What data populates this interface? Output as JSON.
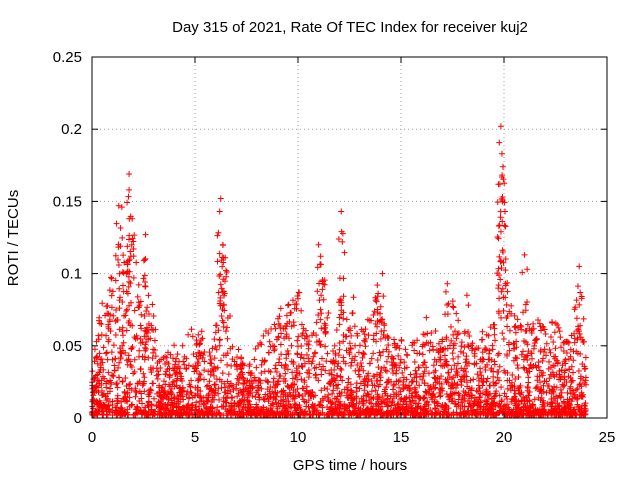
{
  "chart_data": {
    "type": "scatter",
    "title": "Day 315 of 2021, Rate Of TEC Index for receiver kuj2",
    "xlabel": "GPS time / hours",
    "ylabel": "ROTI / TECUs",
    "xlim": [
      0,
      25
    ],
    "ylim": [
      0,
      0.25
    ],
    "x_ticks": [
      0,
      5,
      10,
      15,
      20,
      25
    ],
    "x_tick_labels": [
      "0",
      "5",
      "10",
      "15",
      "20",
      "25"
    ],
    "y_ticks": [
      0,
      0.05,
      0.1,
      0.15,
      0.2,
      0.25
    ],
    "y_tick_labels": [
      "0",
      "0.05",
      "0.1",
      "0.15",
      "0.2",
      "0.25"
    ],
    "grid": true,
    "marker": "+",
    "color": "#ff0000",
    "x_range_of_data": [
      0,
      24
    ],
    "envelope": {
      "hours": [
        0,
        0.25,
        0.5,
        0.75,
        1.0,
        1.25,
        1.5,
        1.75,
        2.0,
        2.25,
        2.5,
        2.75,
        3.0,
        3.25,
        3.5,
        3.75,
        4.0,
        4.25,
        4.5,
        4.75,
        5.0,
        5.25,
        5.5,
        5.75,
        6.0,
        6.25,
        6.5,
        6.75,
        7.0,
        7.25,
        7.5,
        7.75,
        8.0,
        8.25,
        8.5,
        8.75,
        9.0,
        9.25,
        9.5,
        9.75,
        10.0,
        10.25,
        10.5,
        10.75,
        11.0,
        11.25,
        11.5,
        11.75,
        12.0,
        12.25,
        12.5,
        12.75,
        13.0,
        13.25,
        13.5,
        13.75,
        14.0,
        14.25,
        14.5,
        14.75,
        15.0,
        15.25,
        15.5,
        15.75,
        16.0,
        16.25,
        16.5,
        16.75,
        17.0,
        17.25,
        17.5,
        17.75,
        18.0,
        18.25,
        18.5,
        18.75,
        19.0,
        19.25,
        19.5,
        19.75,
        20.0,
        20.25,
        20.5,
        20.75,
        21.0,
        21.25,
        21.5,
        21.75,
        22.0,
        22.25,
        22.5,
        22.75,
        23.0,
        23.25,
        23.5,
        23.75,
        24.0
      ],
      "typical_max": [
        0.03,
        0.06,
        0.09,
        0.1,
        0.1,
        0.12,
        0.11,
        0.13,
        0.135,
        0.09,
        0.12,
        0.085,
        0.085,
        0.04,
        0.04,
        0.045,
        0.05,
        0.045,
        0.055,
        0.06,
        0.06,
        0.065,
        0.05,
        0.045,
        0.06,
        0.11,
        0.11,
        0.06,
        0.05,
        0.04,
        0.03,
        0.04,
        0.05,
        0.06,
        0.06,
        0.065,
        0.065,
        0.09,
        0.08,
        0.085,
        0.09,
        0.07,
        0.05,
        0.065,
        0.075,
        0.11,
        0.07,
        0.05,
        0.07,
        0.09,
        0.06,
        0.09,
        0.06,
        0.065,
        0.07,
        0.085,
        0.08,
        0.06,
        0.05,
        0.06,
        0.055,
        0.045,
        0.05,
        0.055,
        0.05,
        0.07,
        0.065,
        0.06,
        0.06,
        0.07,
        0.08,
        0.075,
        0.06,
        0.05,
        0.05,
        0.05,
        0.06,
        0.06,
        0.065,
        0.09,
        0.14,
        0.09,
        0.07,
        0.065,
        0.06,
        0.065,
        0.065,
        0.07,
        0.06,
        0.065,
        0.07,
        0.06,
        0.055,
        0.06,
        0.08,
        0.09,
        0.05
      ],
      "peaks": [
        {
          "x": 1.8,
          "y": 0.169
        },
        {
          "x": 1.8,
          "y": 0.158
        },
        {
          "x": 1.3,
          "y": 0.147
        },
        {
          "x": 1.45,
          "y": 0.146
        },
        {
          "x": 1.95,
          "y": 0.138
        },
        {
          "x": 2.6,
          "y": 0.127
        },
        {
          "x": 6.25,
          "y": 0.152
        },
        {
          "x": 6.2,
          "y": 0.143
        },
        {
          "x": 6.35,
          "y": 0.12
        },
        {
          "x": 12.1,
          "y": 0.143
        },
        {
          "x": 12.15,
          "y": 0.122
        },
        {
          "x": 11.0,
          "y": 0.12
        },
        {
          "x": 11.1,
          "y": 0.112
        },
        {
          "x": 19.85,
          "y": 0.202
        },
        {
          "x": 19.9,
          "y": 0.183
        },
        {
          "x": 19.95,
          "y": 0.174
        },
        {
          "x": 19.8,
          "y": 0.162
        },
        {
          "x": 20.05,
          "y": 0.143
        },
        {
          "x": 19.75,
          "y": 0.133
        },
        {
          "x": 21.0,
          "y": 0.113
        },
        {
          "x": 23.65,
          "y": 0.105
        },
        {
          "x": 13.85,
          "y": 0.092
        },
        {
          "x": 14.1,
          "y": 0.1
        },
        {
          "x": 17.25,
          "y": 0.093
        },
        {
          "x": 18.2,
          "y": 0.085
        }
      ]
    }
  }
}
